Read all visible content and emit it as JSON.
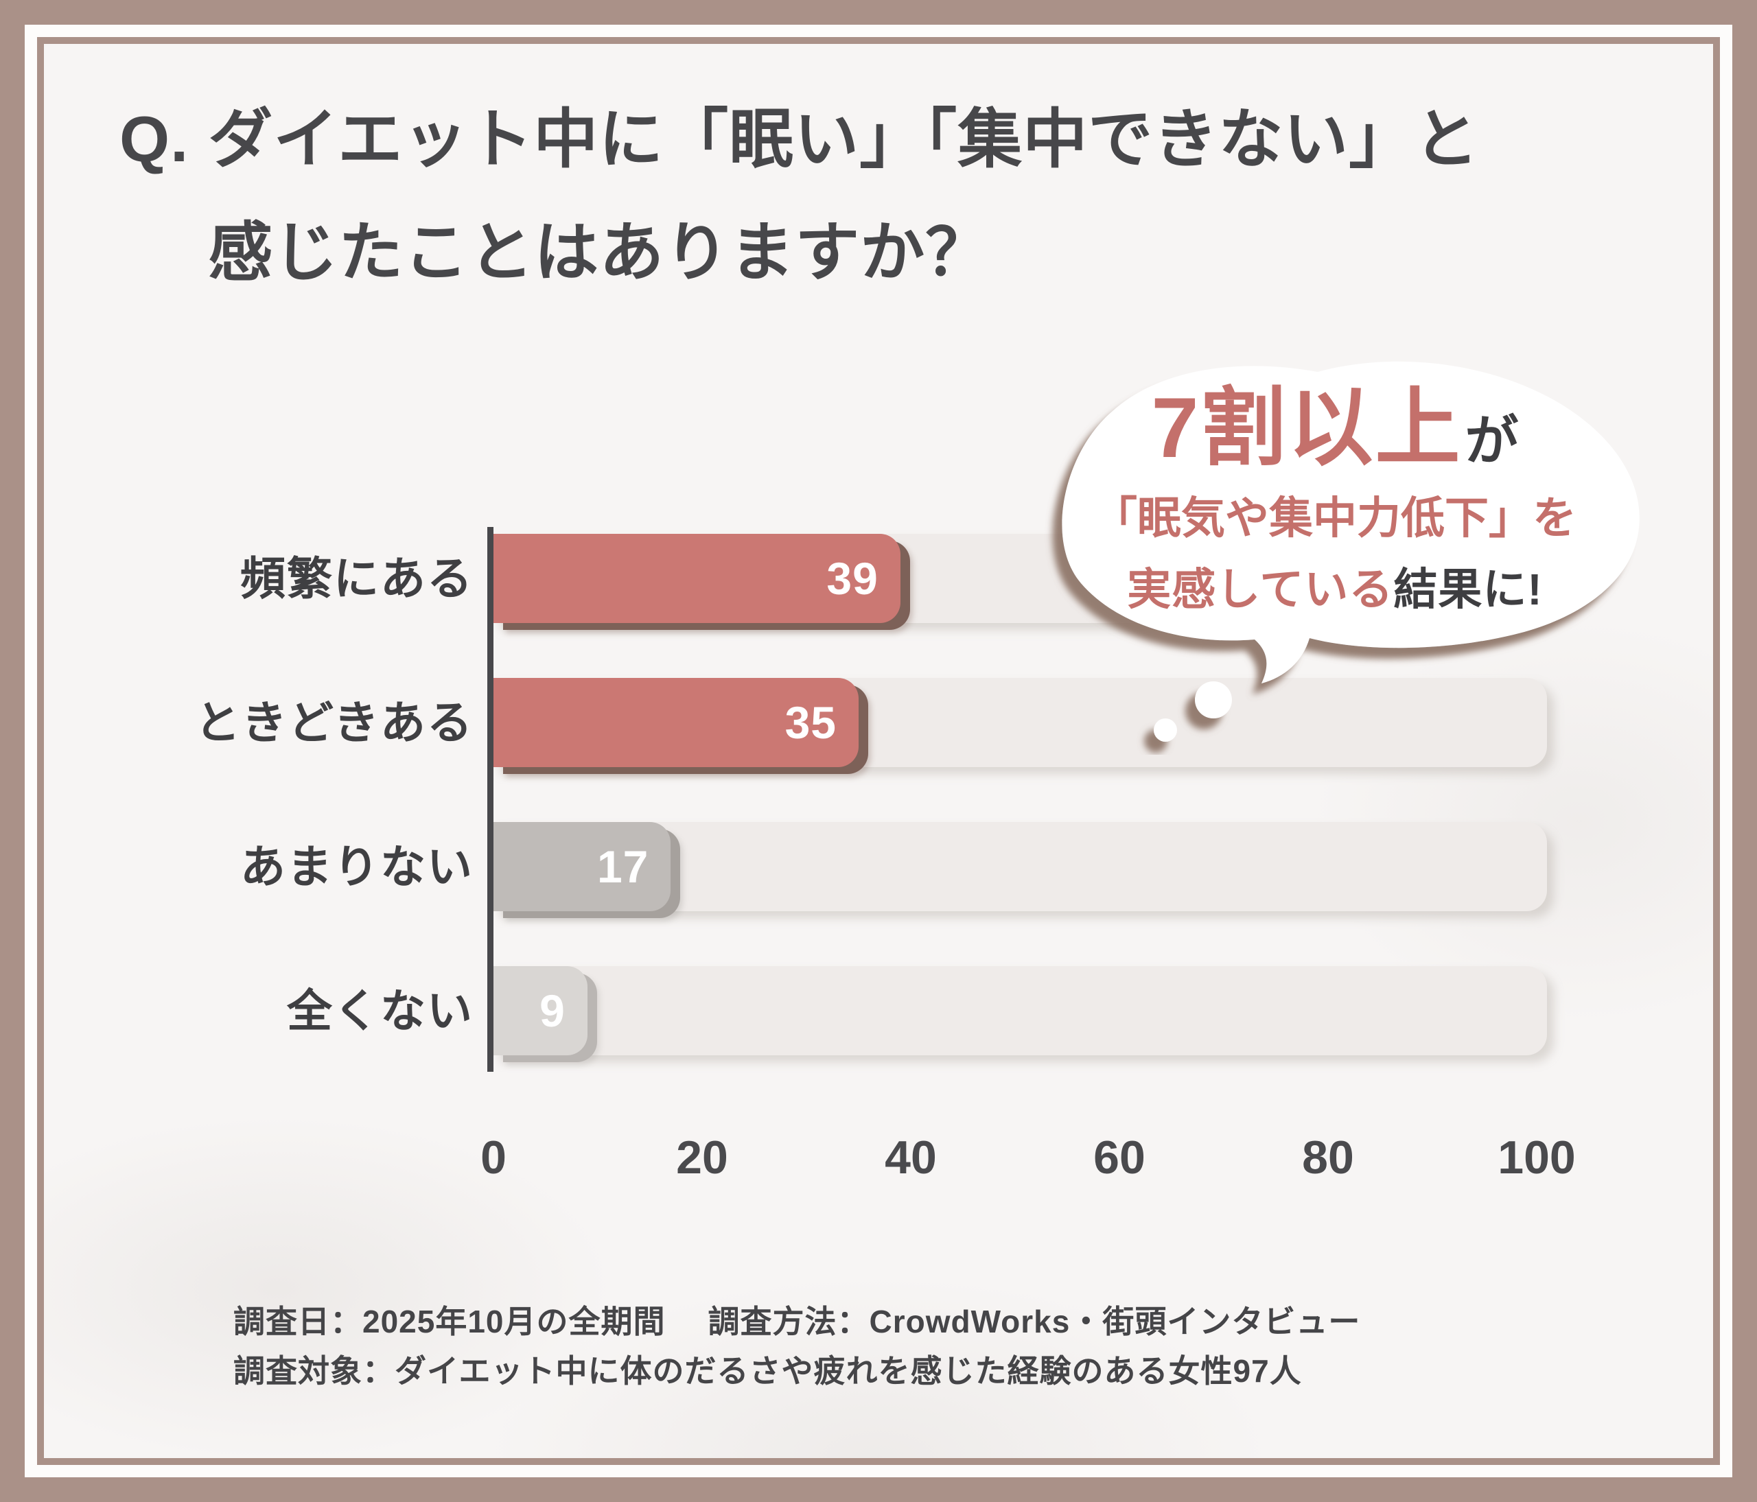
{
  "title": {
    "prefix": "Q.",
    "line1": "ダイエット中に「眠い」「集中できない」と",
    "line2": "感じたことはありますか？"
  },
  "callout": {
    "line1_big": "7割以上",
    "line1_small": "が",
    "line2": "「眠気や集中力低下」を",
    "line3_pink": "実感している",
    "line3_dark": "結果に!"
  },
  "chart_data": {
    "type": "bar",
    "orientation": "horizontal",
    "categories": [
      "頻繁にある",
      "ときどきある",
      "あまりない",
      "全くない"
    ],
    "values": [
      39,
      35,
      17,
      9
    ],
    "x_ticks": [
      0,
      20,
      40,
      60,
      80,
      100
    ],
    "xlim": [
      0,
      100
    ],
    "bar_colors": [
      "#cb7873",
      "#cb7873",
      "#bfbbb8",
      "#d9d6d3"
    ],
    "value_label_color": "#ffffff",
    "grid": false,
    "legend": false
  },
  "footer": {
    "line1_left": "調査日：2025年10月の全期間",
    "line1_right": "調査方法：CrowdWorks・街頭インタビュー",
    "line2": "調査対象：ダイエット中に体のだるさや疲れを感じた経験のある女性97人"
  },
  "colors": {
    "frame": "#aa9188",
    "background": "#f7f5f4",
    "accent_pink": "#c4706b",
    "text_dark": "#47474a",
    "axis": "#48484b",
    "track": "#efebe9",
    "bubble_shadow": "#8a7164"
  }
}
